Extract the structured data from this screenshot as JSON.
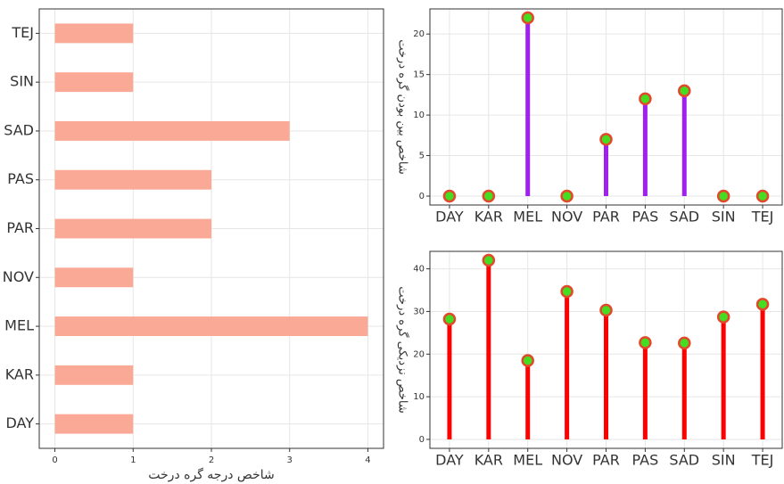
{
  "chart_data": [
    {
      "type": "barh",
      "x_label": "شاخص درجه گره درخت",
      "categories": [
        "DAY",
        "KAR",
        "MEL",
        "NOV",
        "PAR",
        "PAS",
        "SAD",
        "SIN",
        "TEJ"
      ],
      "values": [
        1,
        1,
        4,
        1,
        2,
        2,
        3,
        1,
        1
      ],
      "color": "#f9a995",
      "xlim": [
        -0.2,
        4.2
      ],
      "xticks": [
        0,
        1,
        2,
        3,
        4
      ],
      "grid": true
    },
    {
      "type": "lollipop",
      "y_label": "شاخص بین بودن گره درخت",
      "categories": [
        "DAY",
        "KAR",
        "MEL",
        "NOV",
        "PAR",
        "PAS",
        "SAD",
        "SIN",
        "TEJ"
      ],
      "values": [
        0,
        0,
        22,
        0,
        7,
        12,
        13,
        0,
        0
      ],
      "color": "#a020f0",
      "ylim": [
        -1.1,
        23.1
      ],
      "yticks": [
        0,
        5,
        10,
        15,
        20
      ],
      "grid": true
    },
    {
      "type": "lollipop",
      "y_label": "شاخص نزدیکی گره درخت",
      "categories": [
        "DAY",
        "KAR",
        "MEL",
        "NOV",
        "PAR",
        "PAS",
        "SAD",
        "SIN",
        "TEJ"
      ],
      "values": [
        28.2,
        42,
        18.5,
        34.7,
        30.3,
        22.7,
        22.6,
        28.7,
        31.7
      ],
      "color": "#ff0000",
      "ylim": [
        -2.1,
        44.1
      ],
      "yticks": [
        0,
        10,
        20,
        30,
        40
      ],
      "grid": true
    }
  ]
}
